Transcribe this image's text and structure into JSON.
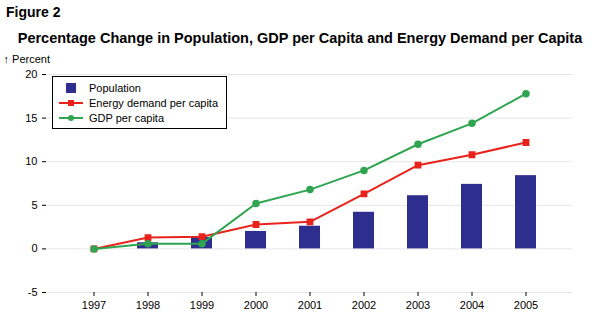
{
  "chart_data": {
    "type": "bar",
    "figure_label": "Figure 2",
    "title": "Percentage Change in Population, GDP per Capita and Energy Demand per Capita",
    "y_label": "Percent",
    "categories": [
      "1997",
      "1998",
      "1999",
      "2000",
      "2001",
      "2002",
      "2003",
      "2004",
      "2005"
    ],
    "series": [
      {
        "name": "Population",
        "type": "bar",
        "color": "#2e2e8f",
        "values": [
          0,
          0.7,
          1.3,
          2.0,
          2.6,
          4.2,
          6.1,
          7.4,
          8.4
        ]
      },
      {
        "name": "Energy demand per capita",
        "type": "line",
        "color": "#e8231c",
        "marker": "square",
        "values": [
          0,
          1.3,
          1.4,
          2.8,
          3.1,
          6.3,
          9.6,
          10.8,
          12.2
        ]
      },
      {
        "name": "GDP per capita",
        "type": "line",
        "color": "#2fa451",
        "marker": "circle",
        "values": [
          0,
          0.6,
          0.6,
          5.2,
          6.8,
          9.0,
          12.0,
          14.4,
          17.8
        ]
      }
    ],
    "ylim": [
      -5,
      20
    ],
    "yticks": [
      -5,
      0,
      5,
      10,
      15,
      20
    ],
    "grid": true,
    "legend": "top-left"
  }
}
